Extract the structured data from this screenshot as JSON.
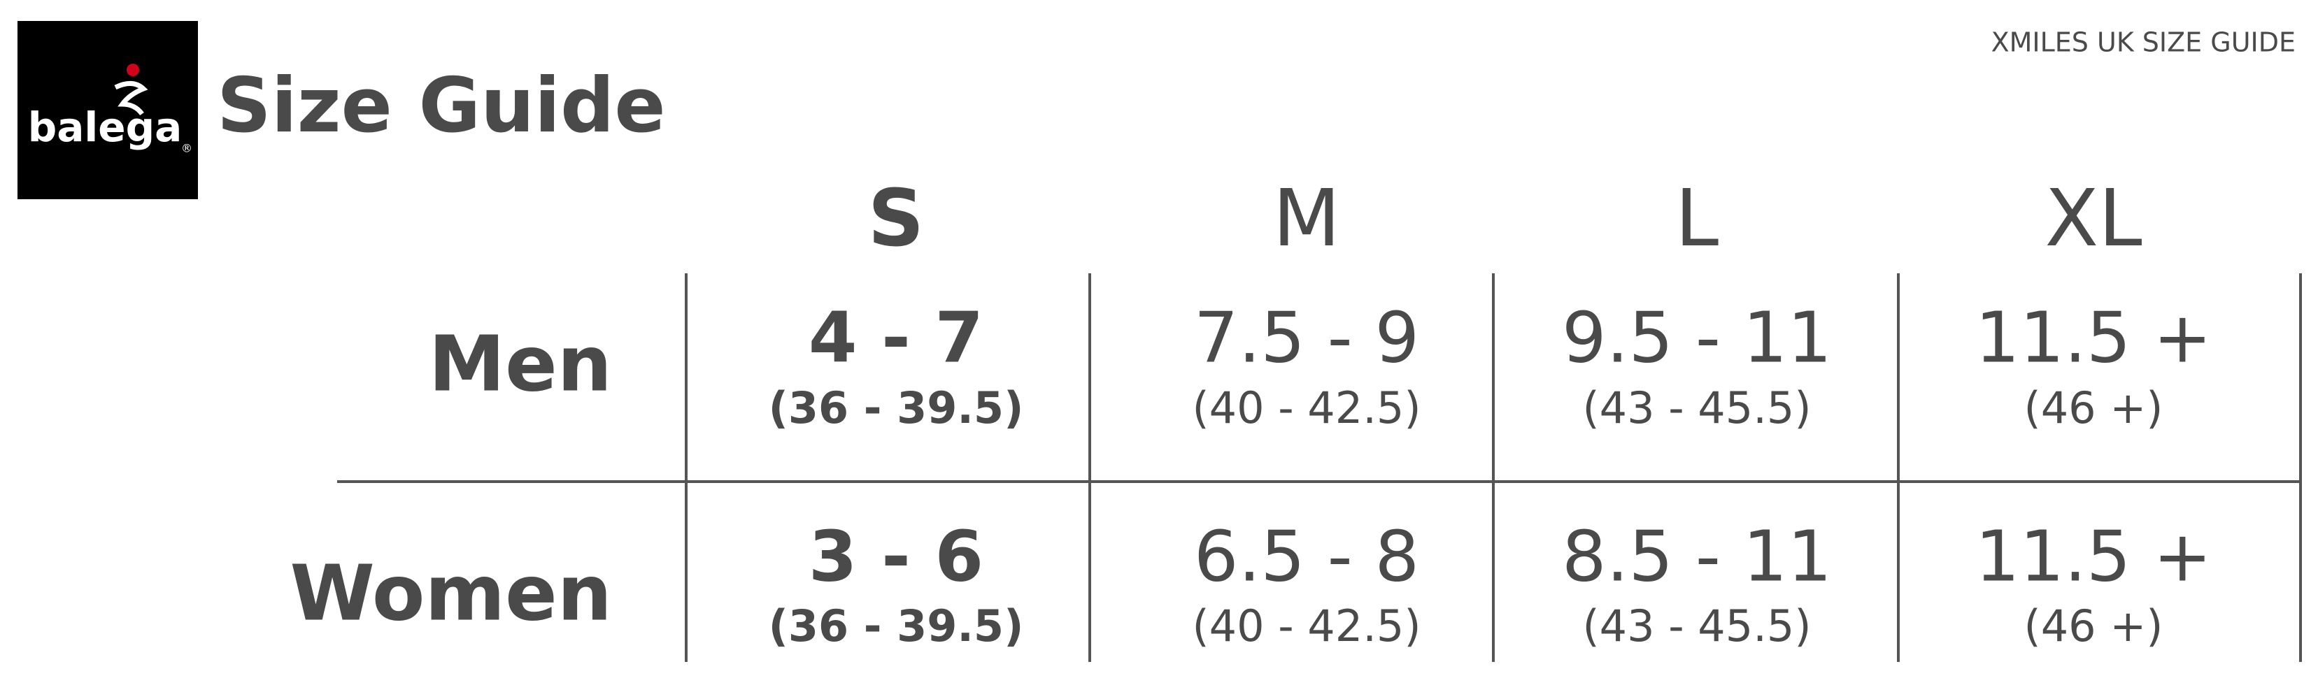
{
  "header": {
    "brand": "balega",
    "registered": "®",
    "title": "Size Guide",
    "subtitle": "XMILES UK SIZE GUIDE"
  },
  "table": {
    "columns": [
      "S",
      "M",
      "L",
      "XL"
    ],
    "rows": [
      {
        "label": "Men",
        "cells": [
          {
            "size": "4 - 7",
            "eu": "(36 - 39.5)"
          },
          {
            "size": "7.5 - 9",
            "eu": "(40 - 42.5)"
          },
          {
            "size": "9.5 - 11",
            "eu": "(43 - 45.5)"
          },
          {
            "size": "11.5 +",
            "eu": "(46 +)"
          }
        ]
      },
      {
        "label": "Women",
        "cells": [
          {
            "size": "3 - 6",
            "eu": "(36 - 39.5)"
          },
          {
            "size": "6.5 - 8",
            "eu": "(40 - 42.5)"
          },
          {
            "size": "8.5 - 11",
            "eu": "(43 - 45.5)"
          },
          {
            "size": "11.5 +",
            "eu": "(46 +)"
          }
        ]
      }
    ]
  }
}
